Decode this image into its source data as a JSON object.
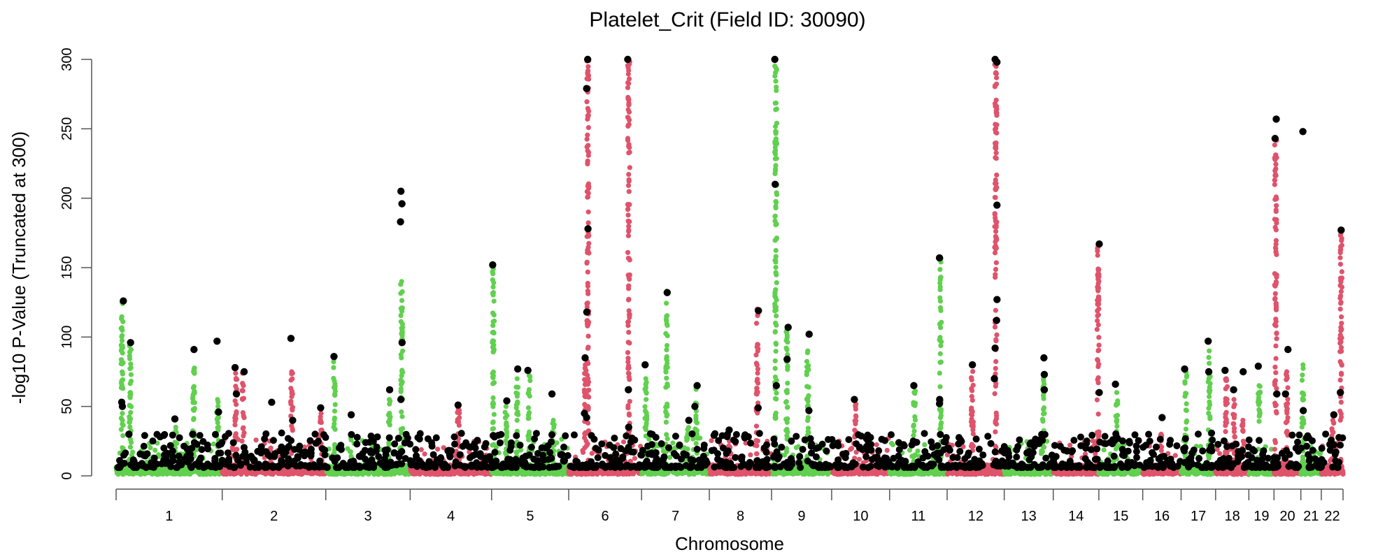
{
  "chart_data": {
    "type": "scatter",
    "subtype": "manhattan",
    "title": "Platelet_Crit (Field ID: 30090)",
    "xlabel": "Chromosome",
    "ylabel": "-log10 P-Value (Truncated at 300)",
    "ylim": [
      0,
      300
    ],
    "yticks": [
      "0",
      "50",
      "100",
      "150",
      "200",
      "250",
      "300"
    ],
    "grid": false,
    "colors": {
      "odd": "#61D04F",
      "even": "#DF536B",
      "lead": "#000000"
    },
    "chromosomes": [
      {
        "label": "1",
        "length_mb": 249
      },
      {
        "label": "2",
        "length_mb": 243
      },
      {
        "label": "3",
        "length_mb": 198
      },
      {
        "label": "4",
        "length_mb": 191
      },
      {
        "label": "5",
        "length_mb": 181
      },
      {
        "label": "6",
        "length_mb": 171
      },
      {
        "label": "7",
        "length_mb": 159
      },
      {
        "label": "8",
        "length_mb": 146
      },
      {
        "label": "9",
        "length_mb": 141
      },
      {
        "label": "10",
        "length_mb": 136
      },
      {
        "label": "11",
        "length_mb": 135
      },
      {
        "label": "12",
        "length_mb": 134
      },
      {
        "label": "13",
        "length_mb": 115
      },
      {
        "label": "14",
        "length_mb": 107
      },
      {
        "label": "15",
        "length_mb": 103
      },
      {
        "label": "16",
        "length_mb": 90
      },
      {
        "label": "17",
        "length_mb": 81
      },
      {
        "label": "18",
        "length_mb": 78
      },
      {
        "label": "19",
        "length_mb": 59
      },
      {
        "label": "20",
        "length_mb": 63
      },
      {
        "label": "21",
        "length_mb": 48
      },
      {
        "label": "22",
        "length_mb": 51
      }
    ],
    "peaks": [
      {
        "chr": 1,
        "pos_mb": 14,
        "max": 125,
        "leads": [
          126,
          53,
          50
        ]
      },
      {
        "chr": 1,
        "pos_mb": 33,
        "max": 95,
        "leads": [
          96,
          30
        ]
      },
      {
        "chr": 1,
        "pos_mb": 140,
        "max": 35,
        "leads": [
          41
        ]
      },
      {
        "chr": 1,
        "pos_mb": 182,
        "max": 91,
        "leads": [
          91,
          30
        ]
      },
      {
        "chr": 1,
        "pos_mb": 238,
        "max": 55,
        "leads": [
          97,
          46
        ]
      },
      {
        "chr": 2,
        "pos_mb": 32,
        "max": 78,
        "leads": [
          78,
          59
        ]
      },
      {
        "chr": 2,
        "pos_mb": 49,
        "max": 75,
        "leads": [
          75
        ]
      },
      {
        "chr": 2,
        "pos_mb": 114,
        "max": 20,
        "leads": [
          53
        ]
      },
      {
        "chr": 2,
        "pos_mb": 163,
        "max": 75,
        "leads": [
          99,
          40
        ]
      },
      {
        "chr": 2,
        "pos_mb": 232,
        "max": 45,
        "leads": [
          49
        ]
      },
      {
        "chr": 3,
        "pos_mb": 20,
        "max": 85,
        "leads": [
          86
        ]
      },
      {
        "chr": 3,
        "pos_mb": 59,
        "max": 30,
        "leads": [
          44
        ]
      },
      {
        "chr": 3,
        "pos_mb": 149,
        "max": 55,
        "leads": [
          62
        ]
      },
      {
        "chr": 3,
        "pos_mb": 178,
        "max": 140,
        "leads": [
          205,
          196,
          183,
          96,
          55
        ]
      },
      {
        "chr": 4,
        "pos_mb": 113,
        "max": 48,
        "leads": [
          51
        ]
      },
      {
        "chr": 5,
        "pos_mb": 4,
        "max": 152,
        "leads": [
          152,
          29
        ]
      },
      {
        "chr": 5,
        "pos_mb": 34,
        "max": 50,
        "leads": [
          54
        ]
      },
      {
        "chr": 5,
        "pos_mb": 60,
        "max": 70,
        "leads": [
          77
        ]
      },
      {
        "chr": 5,
        "pos_mb": 88,
        "max": 76,
        "leads": [
          76
        ]
      },
      {
        "chr": 5,
        "pos_mb": 145,
        "max": 40,
        "leads": [
          59
        ]
      },
      {
        "chr": 6,
        "pos_mb": 39,
        "max": 80,
        "leads": [
          85,
          45
        ]
      },
      {
        "chr": 6,
        "pos_mb": 45,
        "max": 300,
        "leads": [
          300,
          279,
          178,
          118,
          42
        ]
      },
      {
        "chr": 6,
        "pos_mb": 141,
        "max": 300,
        "leads": [
          300,
          62,
          35
        ]
      },
      {
        "chr": 7,
        "pos_mb": 10,
        "max": 70,
        "leads": [
          80
        ]
      },
      {
        "chr": 7,
        "pos_mb": 59,
        "max": 133,
        "leads": [
          132
        ]
      },
      {
        "chr": 7,
        "pos_mb": 108,
        "max": 40,
        "leads": [
          40
        ]
      },
      {
        "chr": 7,
        "pos_mb": 128,
        "max": 65,
        "leads": [
          65,
          50
        ]
      },
      {
        "chr": 8,
        "pos_mb": 47,
        "max": 25,
        "leads": [
          33
        ]
      },
      {
        "chr": 8,
        "pos_mb": 112,
        "max": 120,
        "leads": [
          119,
          49
        ]
      },
      {
        "chr": 9,
        "pos_mb": 10,
        "max": 300,
        "leads": [
          300,
          210,
          65
        ]
      },
      {
        "chr": 9,
        "pos_mb": 36,
        "max": 105,
        "leads": [
          107,
          84
        ]
      },
      {
        "chr": 9,
        "pos_mb": 85,
        "max": 90,
        "leads": [
          102,
          47
        ]
      },
      {
        "chr": 10,
        "pos_mb": 56,
        "max": 55,
        "leads": [
          55
        ]
      },
      {
        "chr": 11,
        "pos_mb": 58,
        "max": 65,
        "leads": [
          65
        ]
      },
      {
        "chr": 11,
        "pos_mb": 119,
        "max": 157,
        "leads": [
          157,
          55,
          52
        ]
      },
      {
        "chr": 12,
        "pos_mb": 59,
        "max": 80,
        "leads": [
          80
        ]
      },
      {
        "chr": 12,
        "pos_mb": 114,
        "max": 300,
        "leads": [
          300,
          298,
          195,
          127,
          112,
          92,
          70
        ]
      },
      {
        "chr": 13,
        "pos_mb": 92,
        "max": 70,
        "leads": [
          85,
          73,
          62
        ]
      },
      {
        "chr": 14,
        "pos_mb": 105,
        "max": 165,
        "leads": [
          167,
          60
        ]
      },
      {
        "chr": 15,
        "pos_mb": 42,
        "max": 60,
        "leads": [
          66
        ]
      },
      {
        "chr": 16,
        "pos_mb": 43,
        "max": 30,
        "leads": [
          42
        ]
      },
      {
        "chr": 17,
        "pos_mb": 11,
        "max": 75,
        "leads": [
          77
        ]
      },
      {
        "chr": 17,
        "pos_mb": 66,
        "max": 90,
        "leads": [
          97,
          75
        ]
      },
      {
        "chr": 18,
        "pos_mb": 25,
        "max": 70,
        "leads": [
          76
        ]
      },
      {
        "chr": 18,
        "pos_mb": 43,
        "max": 55,
        "leads": [
          62
        ]
      },
      {
        "chr": 18,
        "pos_mb": 64,
        "max": 40,
        "leads": [
          75
        ]
      },
      {
        "chr": 19,
        "pos_mb": 24,
        "max": 65,
        "leads": [
          79
        ]
      },
      {
        "chr": 20,
        "pos_mb": 4,
        "max": 243,
        "leads": [
          257,
          243,
          59
        ]
      },
      {
        "chr": 20,
        "pos_mb": 30,
        "max": 75,
        "leads": [
          91,
          59
        ]
      },
      {
        "chr": 21,
        "pos_mb": 5,
        "max": 80,
        "leads": [
          248,
          47
        ]
      },
      {
        "chr": 22,
        "pos_mb": 27,
        "max": 40,
        "leads": [
          44
        ]
      },
      {
        "chr": 22,
        "pos_mb": 46,
        "max": 175,
        "leads": [
          177,
          60
        ]
      }
    ]
  }
}
